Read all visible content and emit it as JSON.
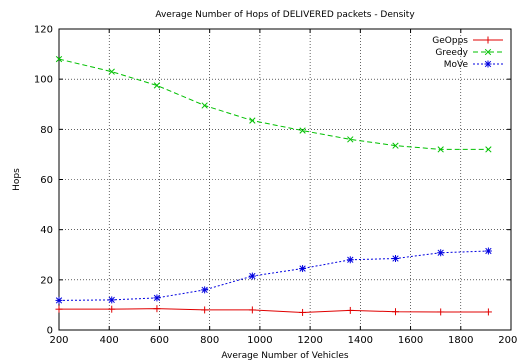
{
  "chart_data": {
    "type": "line",
    "title": "Average Number of Hops of DELIVERED packets - Density",
    "xlabel": "Average Number of Vehicles",
    "ylabel": "Hops",
    "xlim": [
      200,
      2000
    ],
    "ylim": [
      0,
      120
    ],
    "xticks": [
      200,
      400,
      600,
      800,
      1000,
      1200,
      1400,
      1600,
      1800,
      2000
    ],
    "yticks": [
      0,
      20,
      40,
      60,
      80,
      100,
      120
    ],
    "grid": true,
    "legend_position": "top-right",
    "series": [
      {
        "name": "GeOpps",
        "color": "#e00000",
        "marker": "plus",
        "dash": "solid",
        "x": [
          200,
          410,
          590,
          780,
          970,
          1170,
          1360,
          1540,
          1720,
          1910
        ],
        "y": [
          8.3,
          8.3,
          8.5,
          8.0,
          8.0,
          7.0,
          7.8,
          7.3,
          7.2,
          7.2
        ]
      },
      {
        "name": "Greedy",
        "color": "#00c000",
        "marker": "cross",
        "dash": "dashed",
        "x": [
          200,
          410,
          590,
          780,
          970,
          1170,
          1360,
          1540,
          1720,
          1910
        ],
        "y": [
          108,
          103,
          97.5,
          89.5,
          83.5,
          79.5,
          76,
          73.5,
          72,
          72
        ]
      },
      {
        "name": "MoVe",
        "color": "#0000e0",
        "marker": "star",
        "dash": "dotted",
        "x": [
          200,
          410,
          590,
          780,
          970,
          1170,
          1360,
          1540,
          1720,
          1910
        ],
        "y": [
          11.8,
          12.0,
          12.8,
          16.0,
          21.5,
          24.5,
          28.0,
          28.5,
          30.8,
          31.5
        ]
      }
    ]
  }
}
